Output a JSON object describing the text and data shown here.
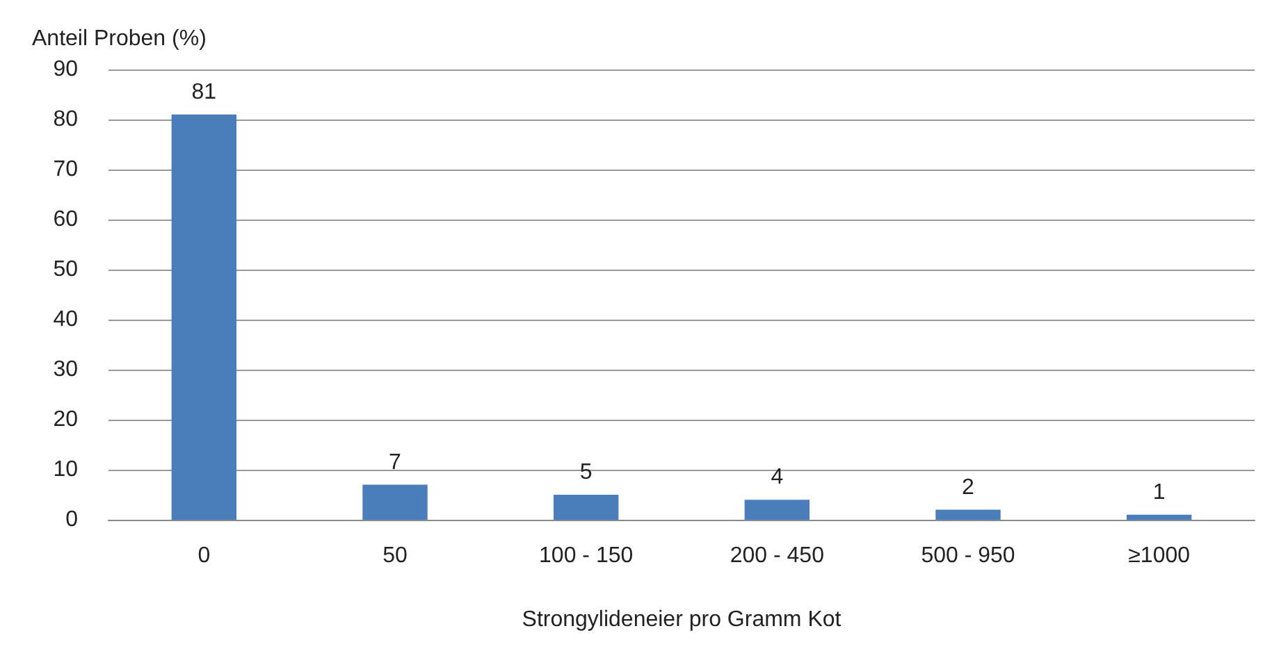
{
  "chart_data": {
    "type": "bar",
    "ylabel": "Anteil Proben (%)",
    "xlabel": "Strongylideneier pro Gramm Kot",
    "categories": [
      "0",
      "50",
      "100 - 150",
      "200 - 450",
      "500 - 950",
      "≥1000"
    ],
    "values": [
      81,
      7,
      5,
      4,
      2,
      1
    ],
    "color": "#4a7ebb",
    "ylim": [
      0,
      90
    ],
    "yticks": [
      0,
      10,
      20,
      30,
      40,
      50,
      60,
      70,
      80,
      90
    ],
    "grid": "y",
    "data_labels": true
  }
}
